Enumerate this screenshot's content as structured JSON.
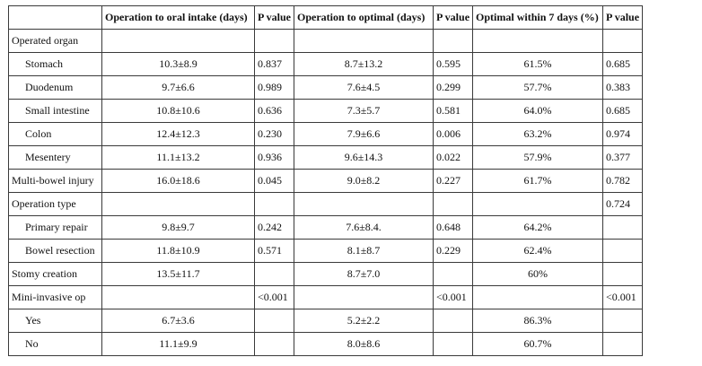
{
  "headers": [
    "",
    "Operation to oral intake (days)",
    "P value",
    "Operation to optimal (days)",
    "P value",
    "Optimal within 7 days (%)",
    "P value"
  ],
  "rows": [
    {
      "label": "Operated organ",
      "sub": false,
      "cells": [
        "",
        "",
        "",
        "",
        "",
        ""
      ]
    },
    {
      "label": "Stomach",
      "sub": true,
      "cells": [
        "10.3±8.9",
        "0.837",
        "8.7±13.2",
        "0.595",
        "61.5%",
        "0.685"
      ]
    },
    {
      "label": "Duodenum",
      "sub": true,
      "cells": [
        "9.7±6.6",
        "0.989",
        "7.6±4.5",
        "0.299",
        "57.7%",
        "0.383"
      ]
    },
    {
      "label": "Small intestine",
      "sub": true,
      "cells": [
        "10.8±10.6",
        "0.636",
        "7.3±5.7",
        "0.581",
        "64.0%",
        "0.685"
      ]
    },
    {
      "label": "Colon",
      "sub": true,
      "cells": [
        "12.4±12.3",
        "0.230",
        "7.9±6.6",
        "0.006",
        "63.2%",
        "0.974"
      ]
    },
    {
      "label": "Mesentery",
      "sub": true,
      "cells": [
        "11.1±13.2",
        "0.936",
        "9.6±14.3",
        "0.022",
        "57.9%",
        "0.377"
      ]
    },
    {
      "label": "Multi-bowel injury",
      "sub": false,
      "cells": [
        "16.0±18.6",
        "0.045",
        "9.0±8.2",
        "0.227",
        "61.7%",
        "0.782"
      ]
    },
    {
      "label": "Operation type",
      "sub": false,
      "cells": [
        "",
        "",
        "",
        "",
        "",
        "0.724"
      ]
    },
    {
      "label": "Primary repair",
      "sub": true,
      "cells": [
        "9.8±9.7",
        "0.242",
        "7.6±8.4.",
        "0.648",
        "64.2%",
        ""
      ]
    },
    {
      "label": "Bowel resection",
      "sub": true,
      "cells": [
        "11.8±10.9",
        "0.571",
        "8.1±8.7",
        "0.229",
        "62.4%",
        ""
      ]
    },
    {
      "label": "Stomy creation",
      "sub": false,
      "cells": [
        "13.5±11.7",
        "",
        "8.7±7.0",
        "",
        "60%",
        ""
      ]
    },
    {
      "label": "Mini-invasive op",
      "sub": false,
      "cells": [
        "",
        "<0.001",
        "",
        "<0.001",
        "",
        "<0.001"
      ]
    },
    {
      "label": "Yes",
      "sub": true,
      "cells": [
        "6.7±3.6",
        "",
        "5.2±2.2",
        "",
        "86.3%",
        ""
      ]
    },
    {
      "label": "No",
      "sub": true,
      "cells": [
        "11.1±9.9",
        "",
        "8.0±8.6",
        "",
        "60.7%",
        ""
      ]
    }
  ]
}
